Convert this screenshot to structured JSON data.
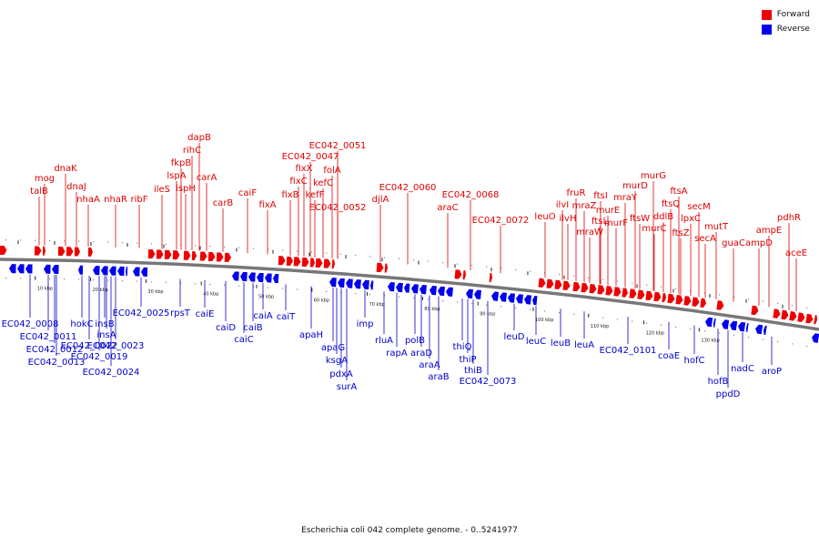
{
  "caption": "Escherichia coli 042 complete genome. - 0..5241977",
  "legend": {
    "forward_label": "Forward",
    "reverse_label": "Reverse",
    "forward_color": "#ee0000",
    "reverse_color": "#0000ee"
  },
  "axis": {
    "ticks": [
      {
        "label": "10 kbp",
        "kbp": 10
      },
      {
        "label": "20 kbp",
        "kbp": 20
      },
      {
        "label": "30 kbp",
        "kbp": 30
      },
      {
        "label": "40 kbp",
        "kbp": 40
      },
      {
        "label": "50 kbp",
        "kbp": 50
      },
      {
        "label": "60 kbp",
        "kbp": 60
      },
      {
        "label": "70 kbp",
        "kbp": 70
      },
      {
        "label": "80 kbp",
        "kbp": 80
      },
      {
        "label": "90 kbp",
        "kbp": 90
      },
      {
        "label": "100 kbp",
        "kbp": 100
      },
      {
        "label": "110 kbp",
        "kbp": 110
      },
      {
        "label": "120 kbp",
        "kbp": 120
      },
      {
        "label": "130 kbp",
        "kbp": 130
      }
    ]
  },
  "forward_genes": [
    "talB",
    "mog",
    "dnaK",
    "dnaJ",
    "nhaA",
    "nhaR",
    "ribF",
    "ileS",
    "lspA",
    "fkpB",
    "ispH",
    "rihC",
    "dapB",
    "carA",
    "carB",
    "caiF",
    "fixA",
    "fixB",
    "fixC",
    "fixX",
    "EC042_0047",
    "kefF",
    "kefC",
    "folA",
    "EC042_0051",
    "EC042_0052",
    "djlA",
    "EC042_0060",
    "araC",
    "EC042_0068",
    "EC042_0072",
    "leuO",
    "ilvI",
    "ilvH",
    "fruR",
    "mraZ",
    "mraW",
    "ftsL",
    "ftsI",
    "murE",
    "murF",
    "mraY",
    "murD",
    "ftsW",
    "murG",
    "murC",
    "ddlB",
    "ftsQ",
    "ftsA",
    "ftsZ",
    "lpxC",
    "secM",
    "secA",
    "mutT",
    "guaC",
    "ampD",
    "ampE",
    "pdhR",
    "aceE"
  ],
  "reverse_genes": [
    "EC042_0008",
    "EC042_0011",
    "EC042_0012",
    "EC042_0013",
    "hokC",
    "insB",
    "insA",
    "EC042_0022",
    "EC042_0023",
    "EC042_0019",
    "EC042_0024",
    "EC042_0025",
    "rpsT",
    "caiE",
    "caiD",
    "caiC",
    "caiB",
    "caiA",
    "caiT",
    "apaH",
    "apaG",
    "ksgA",
    "pdxA",
    "surA",
    "imp",
    "rluA",
    "rapA",
    "polB",
    "araD",
    "araA",
    "araB",
    "thiQ",
    "thiP",
    "thiB",
    "EC042_0073",
    "leuD",
    "leuC",
    "leuB",
    "leuA",
    "EC042_0101",
    "coaE",
    "hofC",
    "hofB",
    "ppdD",
    "nadC",
    "aroP"
  ]
}
